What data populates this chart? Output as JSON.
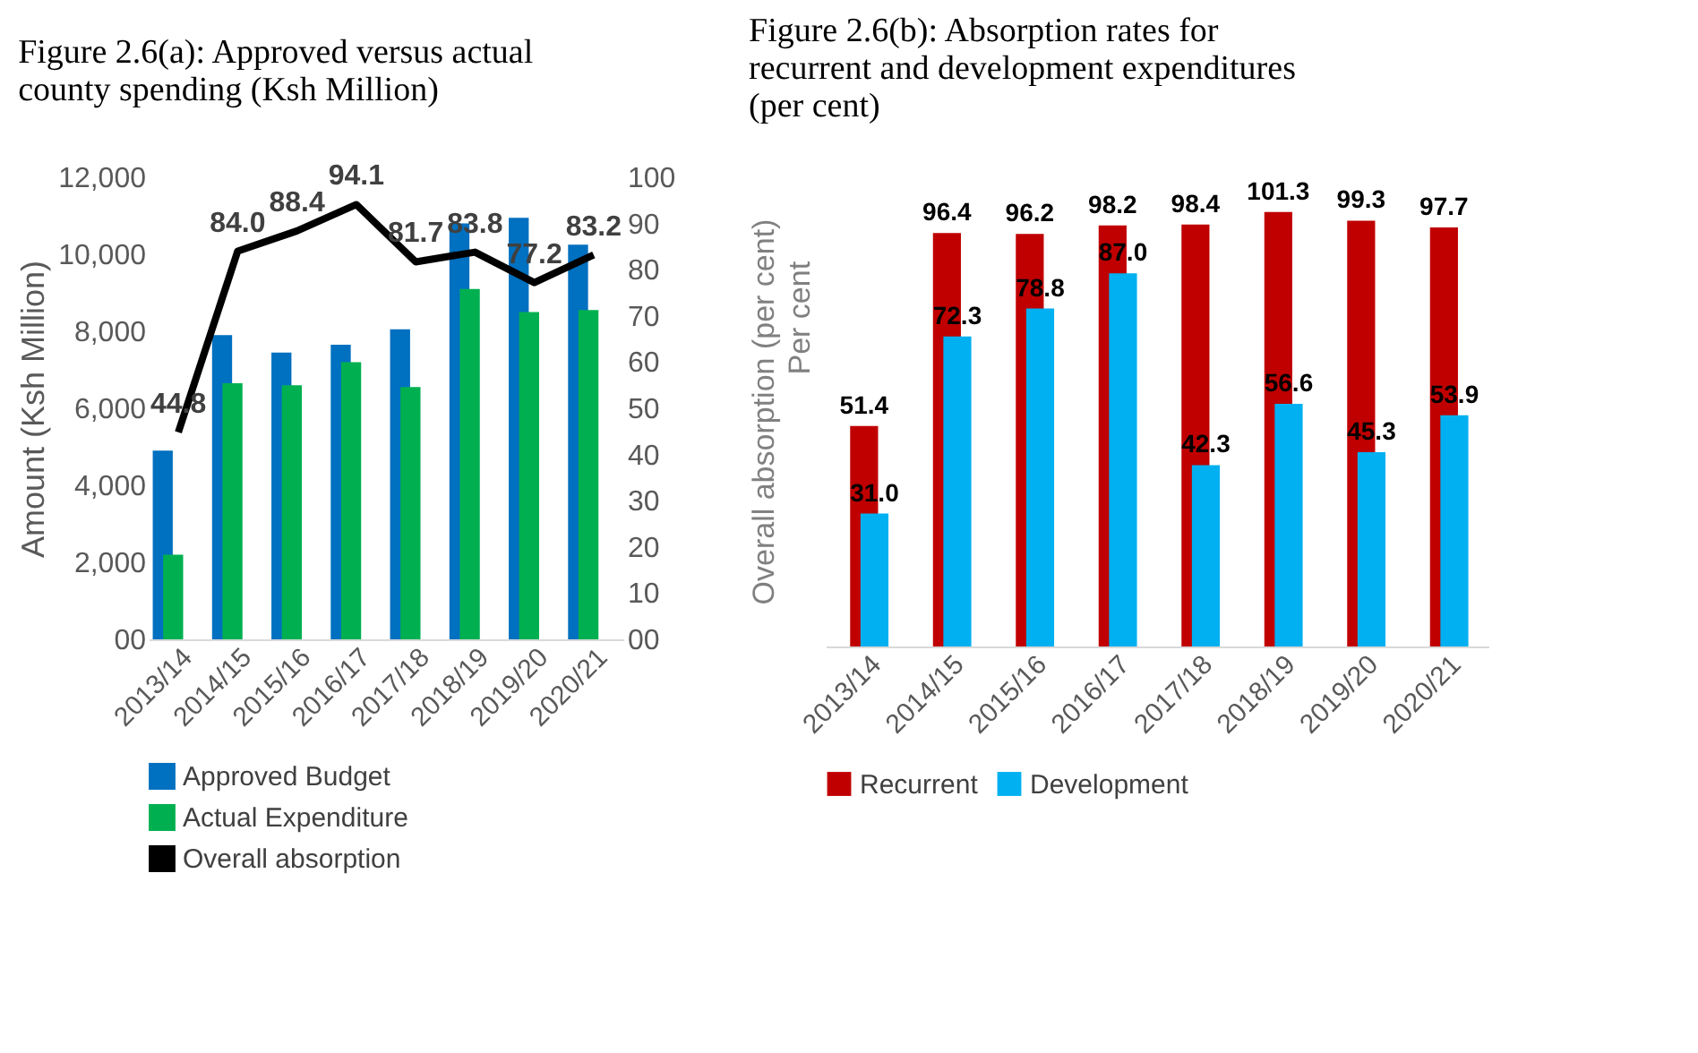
{
  "chart_data": [
    {
      "type": "bar",
      "title": "Figure 2.6(a): Approved versus actual county spending (Ksh Million)",
      "ylabel": "Amount (Ksh Million)",
      "categories": [
        "2013/14",
        "2014/15",
        "2015/16",
        "2016/17",
        "2017/18",
        "2018/19",
        "2019/20",
        "2020/21"
      ],
      "series": [
        {
          "name": "Approved  Budget",
          "color": "#0070c0",
          "values": [
            4900,
            7900,
            7450,
            7650,
            8050,
            10800,
            10950,
            10250
          ]
        },
        {
          "name": "Actual Expenditure",
          "color": "#00b050",
          "values": [
            2200,
            6650,
            6600,
            7200,
            6550,
            9100,
            8500,
            8550
          ]
        },
        {
          "name": "Overall absorption",
          "color": "#000000",
          "type": "line",
          "axis": "y2",
          "values": [
            44.8,
            84.0,
            88.4,
            94.1,
            81.7,
            83.8,
            77.2,
            83.2
          ],
          "value_labels": [
            "44.8",
            "84.0",
            "88.4",
            "94.1",
            "81.7",
            "83.8",
            "77.2",
            "83.2"
          ]
        }
      ],
      "ylim": [
        0,
        12000
      ],
      "yticks": [
        {
          "value": 0,
          "label": "00"
        },
        {
          "value": 2000,
          "label": "2,000"
        },
        {
          "value": 4000,
          "label": "4,000"
        },
        {
          "value": 6000,
          "label": "6,000"
        },
        {
          "value": 8000,
          "label": "8,000"
        },
        {
          "value": 10000,
          "label": "10,000"
        },
        {
          "value": 12000,
          "label": "12,000"
        }
      ],
      "y2lim": [
        0,
        100
      ],
      "y2ticks": [
        {
          "value": 0,
          "label": "00"
        },
        10,
        20,
        30,
        40,
        50,
        60,
        70,
        80,
        90,
        100
      ],
      "legend": "bottom",
      "grid": false,
      "marker": "none"
    },
    {
      "type": "bar",
      "title": "Figure 2.6(b): Absorption rates for recurrent and development expenditures (per cent)",
      "ylabel": "Overall absorption (per cent)",
      "annotations": [
        "Per cent"
      ],
      "categories": [
        "2013/14",
        "2014/15",
        "2015/16",
        "2016/17",
        "2017/18",
        "2018/19",
        "2019/20",
        "2020/21"
      ],
      "series": [
        {
          "name": "Recurrent",
          "color": "#c00000",
          "values": [
            51.4,
            96.4,
            96.2,
            98.2,
            98.4,
            101.3,
            99.3,
            97.7
          ],
          "value_labels": [
            "51.4",
            "96.4",
            "96.2",
            "98.2",
            "98.4",
            "101.3",
            "99.3",
            "97.7"
          ]
        },
        {
          "name": "Development",
          "color": "#00b0f0",
          "values": [
            31.0,
            72.3,
            78.8,
            87.0,
            42.3,
            56.6,
            45.3,
            53.9
          ],
          "value_labels": [
            "31.0",
            "72.3",
            "78.8",
            "87.0",
            "42.3",
            "56.6",
            "45.3",
            "53.9"
          ]
        }
      ],
      "tick_labels": "x",
      "legend": "bottom"
    }
  ]
}
